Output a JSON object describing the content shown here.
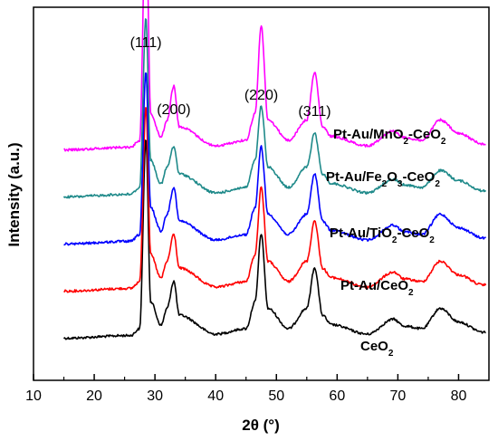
{
  "chart_data": {
    "type": "line",
    "xlabel": "2θ (°)",
    "ylabel": "Intensity (a.u.)",
    "xlim": [
      10,
      85
    ],
    "x_ticks": [
      10,
      20,
      30,
      40,
      50,
      60,
      70,
      80
    ],
    "y_ticks_shown": false,
    "grid": false,
    "peak_labels": [
      {
        "text": "(111)",
        "x": 28.5
      },
      {
        "text": "(200)",
        "x": 33.1
      },
      {
        "text": "(220)",
        "x": 47.5
      },
      {
        "text": "(311)",
        "x": 56.3
      }
    ],
    "series": [
      {
        "name": "CeO2",
        "label_parts": [
          [
            "CeO",
            false
          ],
          [
            "2",
            true
          ]
        ],
        "color": "#000000",
        "baseline": 0,
        "points": [
          [
            15,
            0.6
          ],
          [
            26,
            1.0
          ],
          [
            27.5,
            2
          ],
          [
            28.5,
            30
          ],
          [
            29.3,
            6
          ],
          [
            31,
            2.5
          ],
          [
            32,
            5
          ],
          [
            33.1,
            9
          ],
          [
            34,
            4
          ],
          [
            40,
            1.2
          ],
          [
            45,
            2
          ],
          [
            46.5,
            6
          ],
          [
            47.5,
            16
          ],
          [
            48.6,
            5
          ],
          [
            52,
            2
          ],
          [
            55,
            5
          ],
          [
            56.3,
            11
          ],
          [
            57.6,
            4
          ],
          [
            59,
            2.6
          ],
          [
            65,
            1.2
          ],
          [
            69.3,
            3.4
          ],
          [
            71,
            2.4
          ],
          [
            74,
            2
          ],
          [
            77,
            5
          ],
          [
            80,
            3
          ],
          [
            84,
            1.5
          ]
        ]
      },
      {
        "name": "Pt-Au/CeO2",
        "label_parts": [
          [
            "Pt-Au/CeO",
            false
          ],
          [
            "2",
            true
          ]
        ],
        "color": "#ff0000",
        "baseline": 1,
        "points": [
          [
            15,
            0.6
          ],
          [
            26,
            1.0
          ],
          [
            27.5,
            2
          ],
          [
            28.5,
            28
          ],
          [
            29.3,
            6
          ],
          [
            31,
            2.5
          ],
          [
            32,
            5
          ],
          [
            33.1,
            9
          ],
          [
            34,
            4
          ],
          [
            40,
            1.2
          ],
          [
            45,
            2
          ],
          [
            46.5,
            6
          ],
          [
            47.5,
            16
          ],
          [
            48.6,
            5
          ],
          [
            52,
            2
          ],
          [
            55,
            5
          ],
          [
            56.3,
            11
          ],
          [
            57.6,
            4
          ],
          [
            59,
            2.6
          ],
          [
            65,
            1.2
          ],
          [
            69.3,
            3.4
          ],
          [
            71,
            2.4
          ],
          [
            74,
            2
          ],
          [
            77,
            5
          ],
          [
            80,
            3
          ],
          [
            84,
            1.5
          ]
        ]
      },
      {
        "name": "Pt-Au/TiO2-CeO2",
        "label_parts": [
          [
            "Pt-Au/TiO",
            false
          ],
          [
            "2",
            true
          ],
          [
            "-CeO",
            false
          ],
          [
            "2",
            true
          ]
        ],
        "color": "#0000ff",
        "baseline": 2,
        "points": [
          [
            15,
            0.6
          ],
          [
            26,
            1.0
          ],
          [
            27.5,
            2
          ],
          [
            28.5,
            26
          ],
          [
            29.3,
            6
          ],
          [
            31,
            2.5
          ],
          [
            32,
            5
          ],
          [
            33.1,
            9
          ],
          [
            34,
            4
          ],
          [
            40,
            1.2
          ],
          [
            45,
            2
          ],
          [
            46.5,
            6
          ],
          [
            47.5,
            15
          ],
          [
            48.6,
            5
          ],
          [
            52,
            2
          ],
          [
            55,
            5
          ],
          [
            56.3,
            11
          ],
          [
            57.6,
            4
          ],
          [
            59,
            2.6
          ],
          [
            65,
            1.2
          ],
          [
            69.3,
            3.4
          ],
          [
            71,
            2.4
          ],
          [
            74,
            2
          ],
          [
            77,
            5
          ],
          [
            80,
            3
          ],
          [
            84,
            1.5
          ]
        ]
      },
      {
        "name": "Pt-Au/Fe2O3-CeO2",
        "label_parts": [
          [
            "Pt-Au/Fe",
            false
          ],
          [
            "2",
            true
          ],
          [
            "O",
            false
          ],
          [
            "3",
            true
          ],
          [
            "-CeO",
            false
          ],
          [
            "2",
            true
          ]
        ],
        "color": "#1f8a8a",
        "baseline": 3,
        "points": [
          [
            15,
            0.6
          ],
          [
            26,
            1.0
          ],
          [
            27.5,
            2
          ],
          [
            28.5,
            27
          ],
          [
            29.3,
            6
          ],
          [
            31,
            2.5
          ],
          [
            32,
            5
          ],
          [
            33.1,
            8
          ],
          [
            34,
            4
          ],
          [
            40,
            1.2
          ],
          [
            45,
            2
          ],
          [
            46.5,
            6
          ],
          [
            47.5,
            14
          ],
          [
            48.6,
            5
          ],
          [
            52,
            2
          ],
          [
            55,
            5
          ],
          [
            56.3,
            10
          ],
          [
            57.6,
            4
          ],
          [
            59,
            2.6
          ],
          [
            65,
            1.2
          ],
          [
            69.3,
            3.2
          ],
          [
            71,
            2.4
          ],
          [
            74,
            2
          ],
          [
            77,
            4.5
          ],
          [
            80,
            3
          ],
          [
            84,
            1.5
          ]
        ]
      },
      {
        "name": "Pt-Au/MnO2-CeO2",
        "label_parts": [
          [
            "Pt-Au/MnO",
            false
          ],
          [
            "2",
            true
          ],
          [
            "-CeO",
            false
          ],
          [
            "2",
            true
          ]
        ],
        "color": "#ff00ff",
        "baseline": 4,
        "points": [
          [
            15,
            0.6
          ],
          [
            26,
            1.0
          ],
          [
            27.5,
            2
          ],
          [
            28.5,
            37
          ],
          [
            29.3,
            6
          ],
          [
            31,
            2.5
          ],
          [
            32,
            5
          ],
          [
            33.1,
            10
          ],
          [
            34,
            4
          ],
          [
            40,
            1.2
          ],
          [
            45,
            2
          ],
          [
            46.5,
            6
          ],
          [
            47.5,
            19
          ],
          [
            48.6,
            5
          ],
          [
            52,
            2
          ],
          [
            55,
            5
          ],
          [
            56.3,
            12
          ],
          [
            57.6,
            4
          ],
          [
            59,
            2.6
          ],
          [
            65,
            1.2
          ],
          [
            69.3,
            3.4
          ],
          [
            71,
            2.4
          ],
          [
            74,
            2
          ],
          [
            77,
            5
          ],
          [
            80,
            3
          ],
          [
            84,
            1.5
          ]
        ]
      }
    ]
  }
}
